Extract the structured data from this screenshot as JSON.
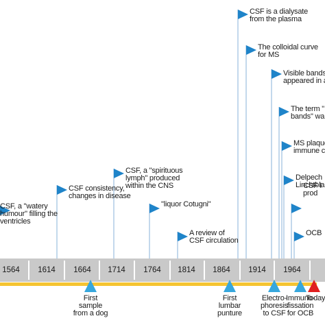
{
  "colors": {
    "axis_band": "#c9c9c9",
    "tick": "#ffffff",
    "underline": "#f5c431",
    "stem": "#9bbfe0",
    "flag": "#1f84c9",
    "triangle": "#36a7dd",
    "today": "#e02020"
  },
  "years": [
    "1564",
    "1614",
    "1664",
    "1714",
    "1764",
    "1814",
    "1864",
    "1914",
    "1964"
  ],
  "flags": [
    {
      "label": "CSF, a \"watery\nhumour\" filling the\nventricles"
    },
    {
      "label": "CSF consistency,\nchanges in disease"
    },
    {
      "label": "CSF, a \"spirituous\nlymph\" produced\nwithin the CNS"
    },
    {
      "label": "\"liquor Cotugni\""
    },
    {
      "label": "A review of\nCSF circulation"
    },
    {
      "label": "CSF is a dialysate\nfrom the plasma"
    },
    {
      "label": "The colloidal curve\nfor MS"
    },
    {
      "label": "Visible bands\nappeared in a"
    },
    {
      "label": "The term \"\nbands\" wa"
    },
    {
      "label": "MS plaques\nimmune c"
    },
    {
      "label": "Delpech\nLinchtbla"
    },
    {
      "label": "CSF I\nprod"
    },
    {
      "label": "OCB"
    }
  ],
  "markers": [
    {
      "label": "First\nsample\nfrom a dog"
    },
    {
      "label": "First\nlumbar\npunture"
    },
    {
      "label": "Electro-\nphoresis\nto CSF"
    },
    {
      "label": "Immuno-\nfissation\nfor OCB"
    },
    {
      "label": "Today"
    }
  ]
}
